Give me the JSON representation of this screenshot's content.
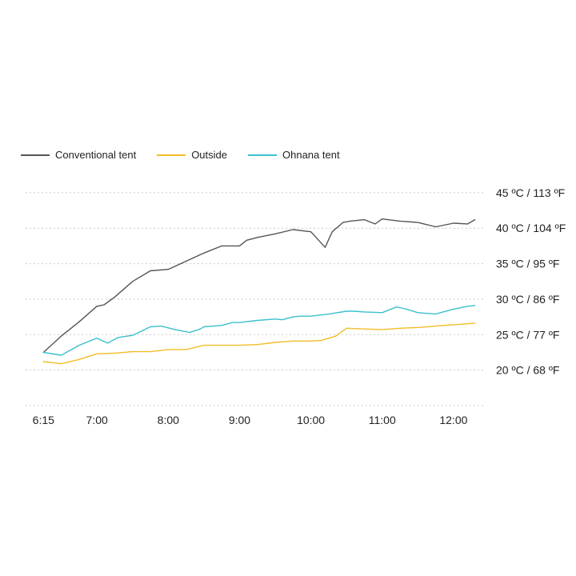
{
  "chart_data": {
    "type": "line",
    "title": "",
    "xlabel": "",
    "ylabel": "",
    "grid": "horizontal-dotted",
    "legend_position": "top-left",
    "x_tick_labels": [
      "6:15",
      "7:00",
      "8:00",
      "9:00",
      "10:00",
      "11:00",
      "12:00"
    ],
    "x_tick_values": [
      6.25,
      7.0,
      8.0,
      9.0,
      10.0,
      11.0,
      12.0
    ],
    "xlim": [
      6.0,
      12.45
    ],
    "y_tick_labels": [
      "20 ºC / 68 ºF",
      "25 ºC / 77 ºF",
      "30 ºC / 86 ºF",
      "35 ºC / 95 ºF",
      "40 ºC / 104 ºF",
      "45 ºC / 113 ºF"
    ],
    "y_tick_values": [
      20,
      25,
      30,
      35,
      40,
      45
    ],
    "ylim": [
      15,
      46
    ],
    "series": [
      {
        "name": "Conventional tent",
        "color": "#555555",
        "x": [
          6.25,
          6.5,
          6.75,
          7.0,
          7.1,
          7.25,
          7.5,
          7.75,
          8.0,
          8.5,
          8.75,
          9.0,
          9.1,
          9.25,
          9.5,
          9.75,
          10.0,
          10.2,
          10.3,
          10.45,
          10.55,
          10.75,
          10.9,
          11.0,
          11.25,
          11.5,
          11.75,
          12.0,
          12.2,
          12.3
        ],
        "values": [
          22.5,
          24.8,
          26.8,
          29.0,
          29.2,
          30.3,
          32.5,
          34.0,
          34.2,
          36.5,
          37.5,
          37.5,
          38.3,
          38.7,
          39.2,
          39.8,
          39.5,
          37.3,
          39.5,
          40.8,
          41.0,
          41.2,
          40.6,
          41.3,
          41.0,
          40.8,
          40.2,
          40.7,
          40.6,
          41.2
        ]
      },
      {
        "name": "Outside",
        "color": "#f2bd28",
        "x": [
          6.25,
          6.5,
          6.75,
          7.0,
          7.25,
          7.5,
          7.75,
          8.0,
          8.25,
          8.5,
          8.75,
          9.0,
          9.25,
          9.5,
          9.75,
          10.0,
          10.15,
          10.35,
          10.5,
          10.75,
          11.0,
          11.25,
          11.5,
          11.75,
          12.0,
          12.3
        ],
        "values": [
          21.2,
          20.9,
          21.5,
          22.3,
          22.4,
          22.6,
          22.6,
          22.9,
          22.9,
          23.5,
          23.5,
          23.5,
          23.6,
          23.9,
          24.1,
          24.1,
          24.2,
          24.8,
          25.9,
          25.8,
          25.7,
          25.9,
          26.0,
          26.2,
          26.4,
          26.6
        ]
      },
      {
        "name": "Ohnana tent",
        "color": "#3cc0cc",
        "x": [
          6.25,
          6.5,
          6.75,
          7.0,
          7.15,
          7.3,
          7.5,
          7.75,
          7.9,
          8.1,
          8.3,
          8.45,
          8.5,
          8.75,
          8.9,
          9.0,
          9.25,
          9.5,
          9.6,
          9.75,
          9.85,
          10.0,
          10.25,
          10.5,
          10.6,
          10.75,
          11.0,
          11.2,
          11.3,
          11.5,
          11.75,
          12.0,
          12.2,
          12.3
        ],
        "values": [
          22.5,
          22.1,
          23.5,
          24.5,
          23.8,
          24.6,
          24.9,
          26.1,
          26.2,
          25.7,
          25.3,
          25.8,
          26.1,
          26.3,
          26.7,
          26.7,
          27.0,
          27.2,
          27.1,
          27.5,
          27.6,
          27.6,
          27.9,
          28.3,
          28.3,
          28.2,
          28.1,
          28.9,
          28.7,
          28.1,
          27.9,
          28.6,
          29.0,
          29.1
        ]
      }
    ]
  }
}
